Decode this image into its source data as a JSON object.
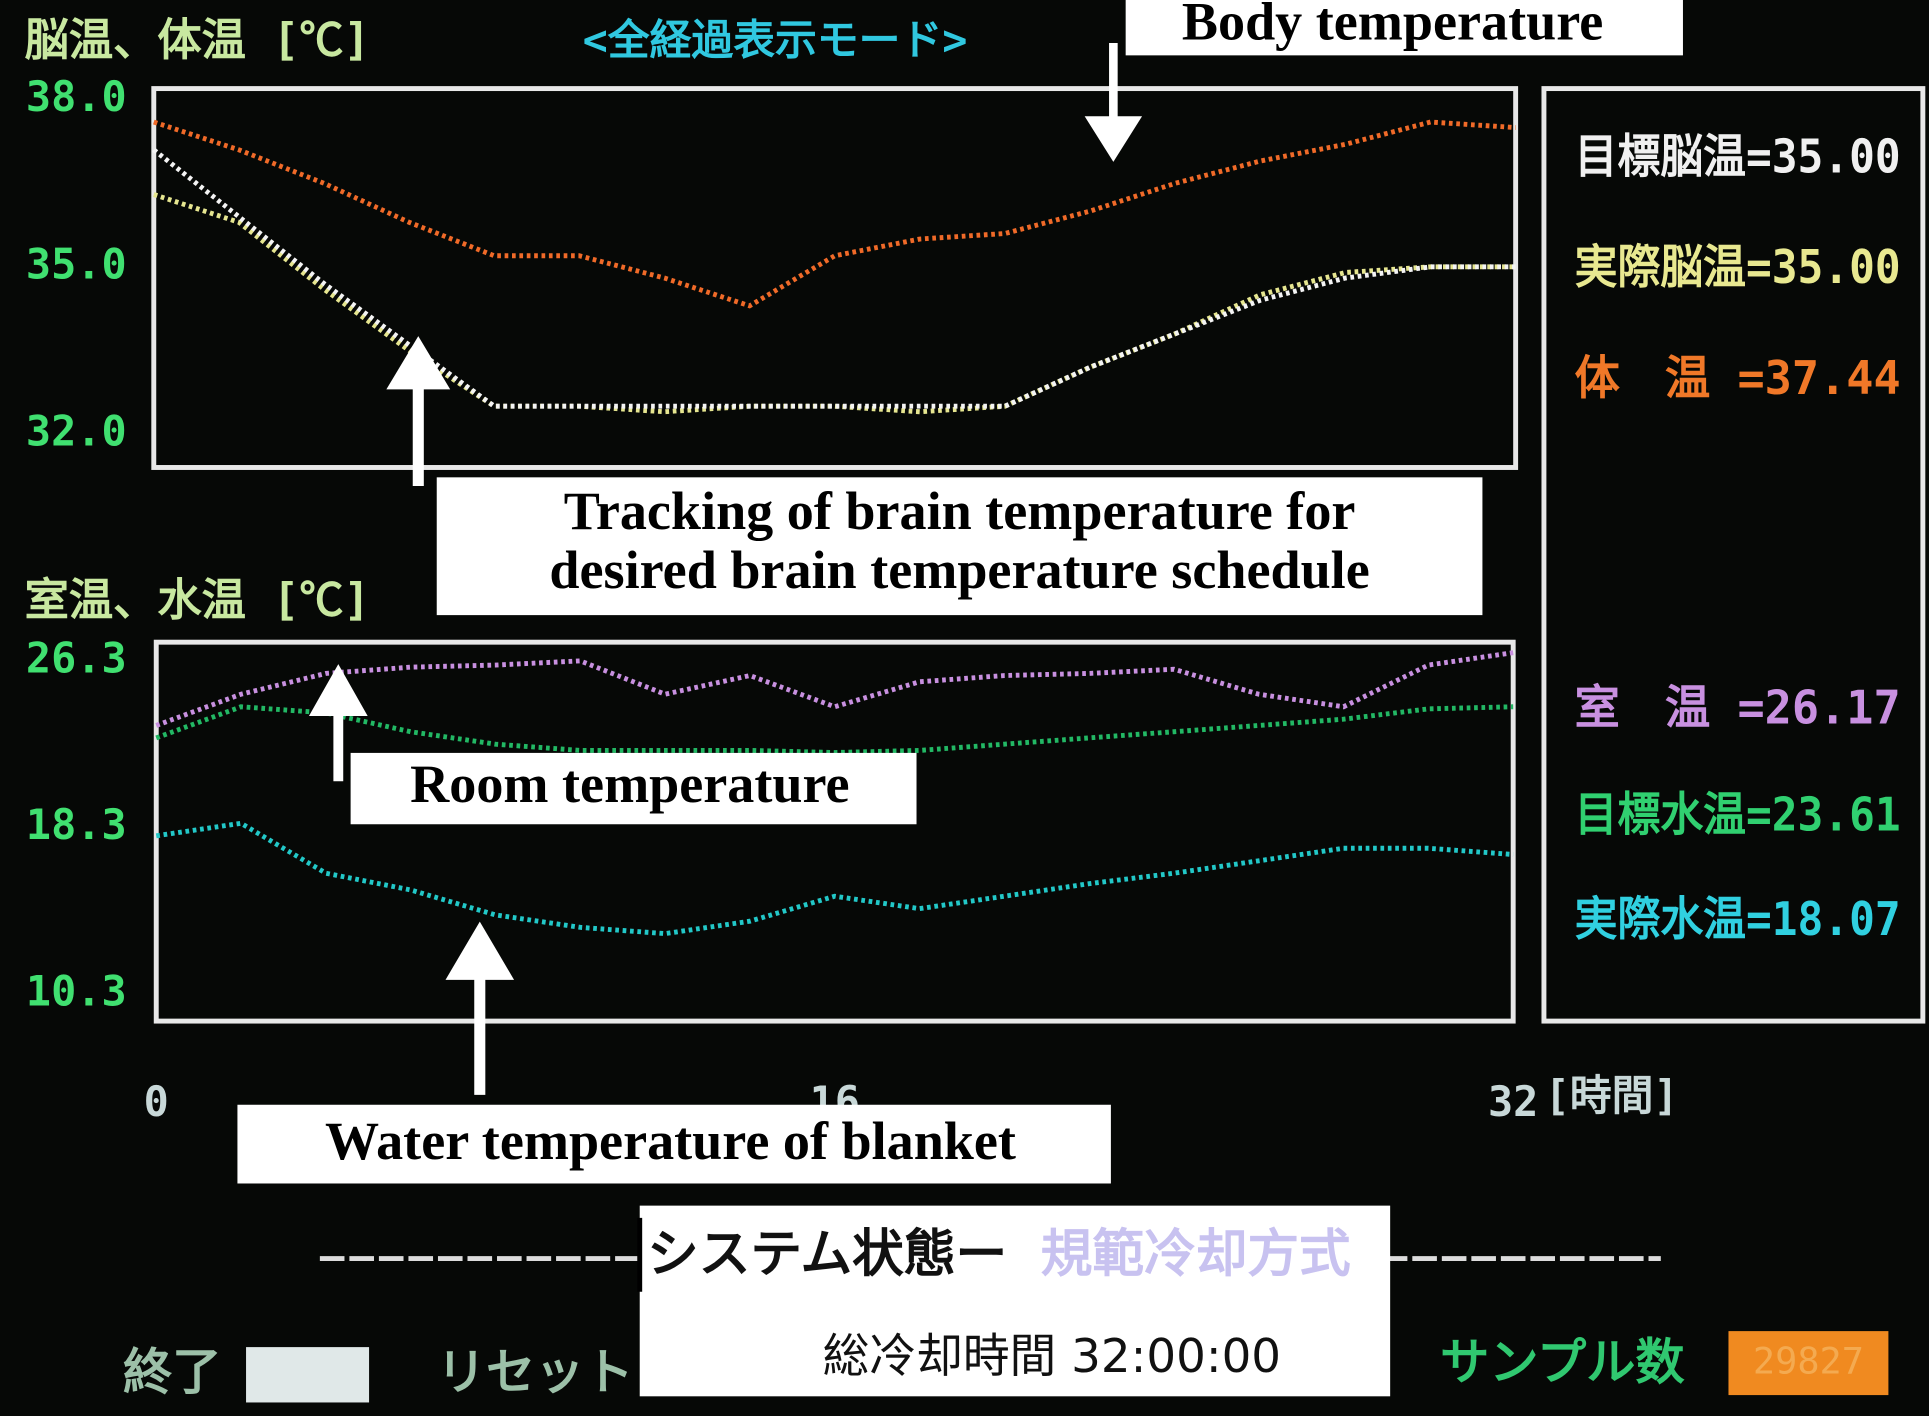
{
  "header": {
    "mode_title": "<全経過表示モード>"
  },
  "chart_data": [
    {
      "type": "line",
      "ylabel": "脳温、体温 [℃]",
      "x": [
        0,
        2,
        4,
        6,
        8,
        10,
        12,
        14,
        16,
        18,
        20,
        22,
        24,
        26,
        28,
        30,
        32
      ],
      "xlim": [
        0,
        32
      ],
      "ylim": [
        31.4,
        38.2
      ],
      "yticks": [
        {
          "value": 32,
          "label": "32.0"
        },
        {
          "value": 35,
          "label": "35.0"
        },
        {
          "value": 38,
          "label": "38.0"
        }
      ],
      "series": [
        {
          "color": "#f06a28",
          "values": [
            37.6,
            37.1,
            36.5,
            35.8,
            35.2,
            35.2,
            34.8,
            34.3,
            35.2,
            35.5,
            35.6,
            36.0,
            36.5,
            36.9,
            37.2,
            37.6,
            37.5
          ]
        },
        {
          "color": "#e6e690",
          "values": [
            36.3,
            35.8,
            34.6,
            33.5,
            32.5,
            32.5,
            32.4,
            32.5,
            32.5,
            32.4,
            32.5,
            33.2,
            33.8,
            34.5,
            34.9,
            35.0,
            35.0
          ]
        },
        {
          "color": "#f4f4f4",
          "values": [
            37.1,
            35.9,
            34.7,
            33.6,
            32.5,
            32.5,
            32.5,
            32.5,
            32.5,
            32.5,
            32.5,
            33.2,
            33.8,
            34.4,
            34.8,
            35.0,
            35.0
          ]
        }
      ]
    },
    {
      "type": "line",
      "ylabel": "室温、水温 [℃]",
      "xlabel": "[時間]",
      "x": [
        0,
        2,
        4,
        6,
        8,
        10,
        12,
        14,
        16,
        18,
        20,
        22,
        24,
        26,
        28,
        30,
        32
      ],
      "xlim": [
        0,
        32
      ],
      "xticks": [
        0,
        16,
        32
      ],
      "ylim": [
        9.0,
        27.2
      ],
      "yticks": [
        {
          "value": 10.3,
          "label": "10.3"
        },
        {
          "value": 18.3,
          "label": "18.3"
        },
        {
          "value": 26.3,
          "label": "26.3"
        }
      ],
      "series": [
        {
          "color": "#c890e0",
          "values": [
            23.2,
            24.7,
            25.7,
            26.0,
            26.1,
            26.3,
            24.7,
            25.6,
            24.1,
            25.3,
            25.6,
            25.7,
            25.9,
            24.7,
            24.1,
            26.1,
            26.7
          ]
        },
        {
          "color": "#22b864",
          "values": [
            22.6,
            24.1,
            23.8,
            22.9,
            22.3,
            22.0,
            22.0,
            22.0,
            21.9,
            22.0,
            22.3,
            22.6,
            22.9,
            23.2,
            23.5,
            24.0,
            24.1
          ]
        },
        {
          "color": "#22c8c8",
          "values": [
            17.9,
            18.5,
            16.1,
            15.3,
            14.1,
            13.5,
            13.2,
            13.8,
            15.0,
            14.4,
            15.0,
            15.6,
            16.1,
            16.7,
            17.3,
            17.3,
            17.0
          ]
        }
      ]
    }
  ],
  "annotations": {
    "body": "Body temperature",
    "tracking": [
      "Tracking of brain temperature for",
      "desired brain temperature schedule"
    ],
    "room": "Room temperature",
    "water": "Water temperature of blanket"
  },
  "side_panel": [
    "目標脳温=35.00",
    "実際脳温=35.00",
    "体　温 =37.44",
    "室　温 =26.17",
    "目標水温=23.61",
    "実際水温=18.07"
  ],
  "status": {
    "label": "システム状態ー",
    "mode": "規範冷却方式",
    "total_time": "総冷却時間 32:00:00"
  },
  "footer": {
    "exit": "終了",
    "reset": "リセット",
    "samples_label": "サンプル数",
    "samples": "29827"
  }
}
